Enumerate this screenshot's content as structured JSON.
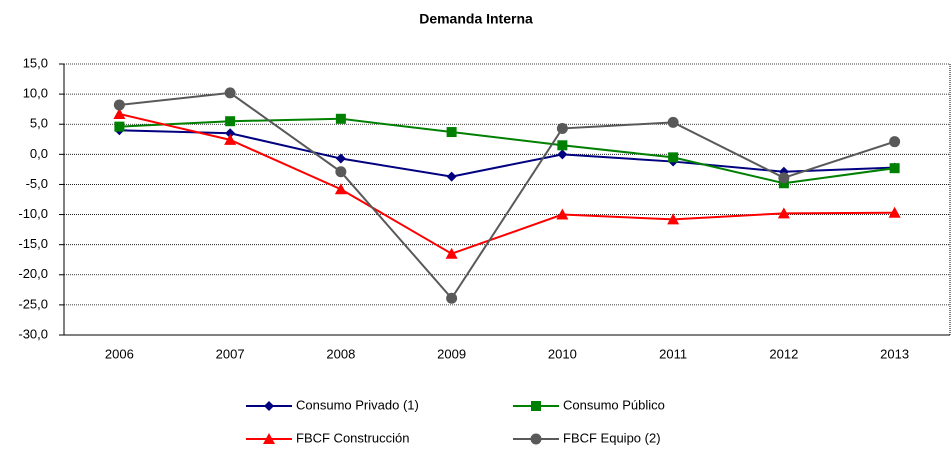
{
  "chart_data": {
    "type": "line",
    "title": "Demanda Interna",
    "categories": [
      "2006",
      "2007",
      "2008",
      "2009",
      "2010",
      "2011",
      "2012",
      "2013"
    ],
    "series": [
      {
        "name": "Consumo Privado (1)",
        "color": "#000080",
        "marker": "diamond",
        "values": [
          4.0,
          3.5,
          -0.7,
          -3.7,
          0.0,
          -1.2,
          -2.9,
          -2.2
        ]
      },
      {
        "name": "Consumo Público",
        "color": "#008000",
        "marker": "square",
        "values": [
          4.6,
          5.5,
          5.9,
          3.7,
          1.5,
          -0.5,
          -4.8,
          -2.3
        ]
      },
      {
        "name": "FBCF Construcción",
        "color": "#ff0000",
        "marker": "triangle",
        "values": [
          6.7,
          2.4,
          -5.8,
          -16.5,
          -10.0,
          -10.8,
          -9.8,
          -9.7
        ]
      },
      {
        "name": "FBCF Equipo (2)",
        "color": "#595959",
        "marker": "circle",
        "values": [
          8.2,
          10.2,
          -2.9,
          -23.9,
          4.3,
          5.3,
          -3.9,
          2.1
        ]
      }
    ],
    "ylim": [
      -30,
      15
    ],
    "yticks": [
      {
        "value": -30,
        "label": "-30,0"
      },
      {
        "value": -25,
        "label": "-25,0"
      },
      {
        "value": -20,
        "label": "-20,0"
      },
      {
        "value": -15,
        "label": "-15,0"
      },
      {
        "value": -10,
        "label": "-10,0"
      },
      {
        "value": -5,
        "label": "-5,0"
      },
      {
        "value": 0,
        "label": "0,0"
      },
      {
        "value": 5,
        "label": "5,0"
      },
      {
        "value": 10,
        "label": "10,0"
      },
      {
        "value": 15,
        "label": "15,0"
      }
    ],
    "grid": true
  }
}
